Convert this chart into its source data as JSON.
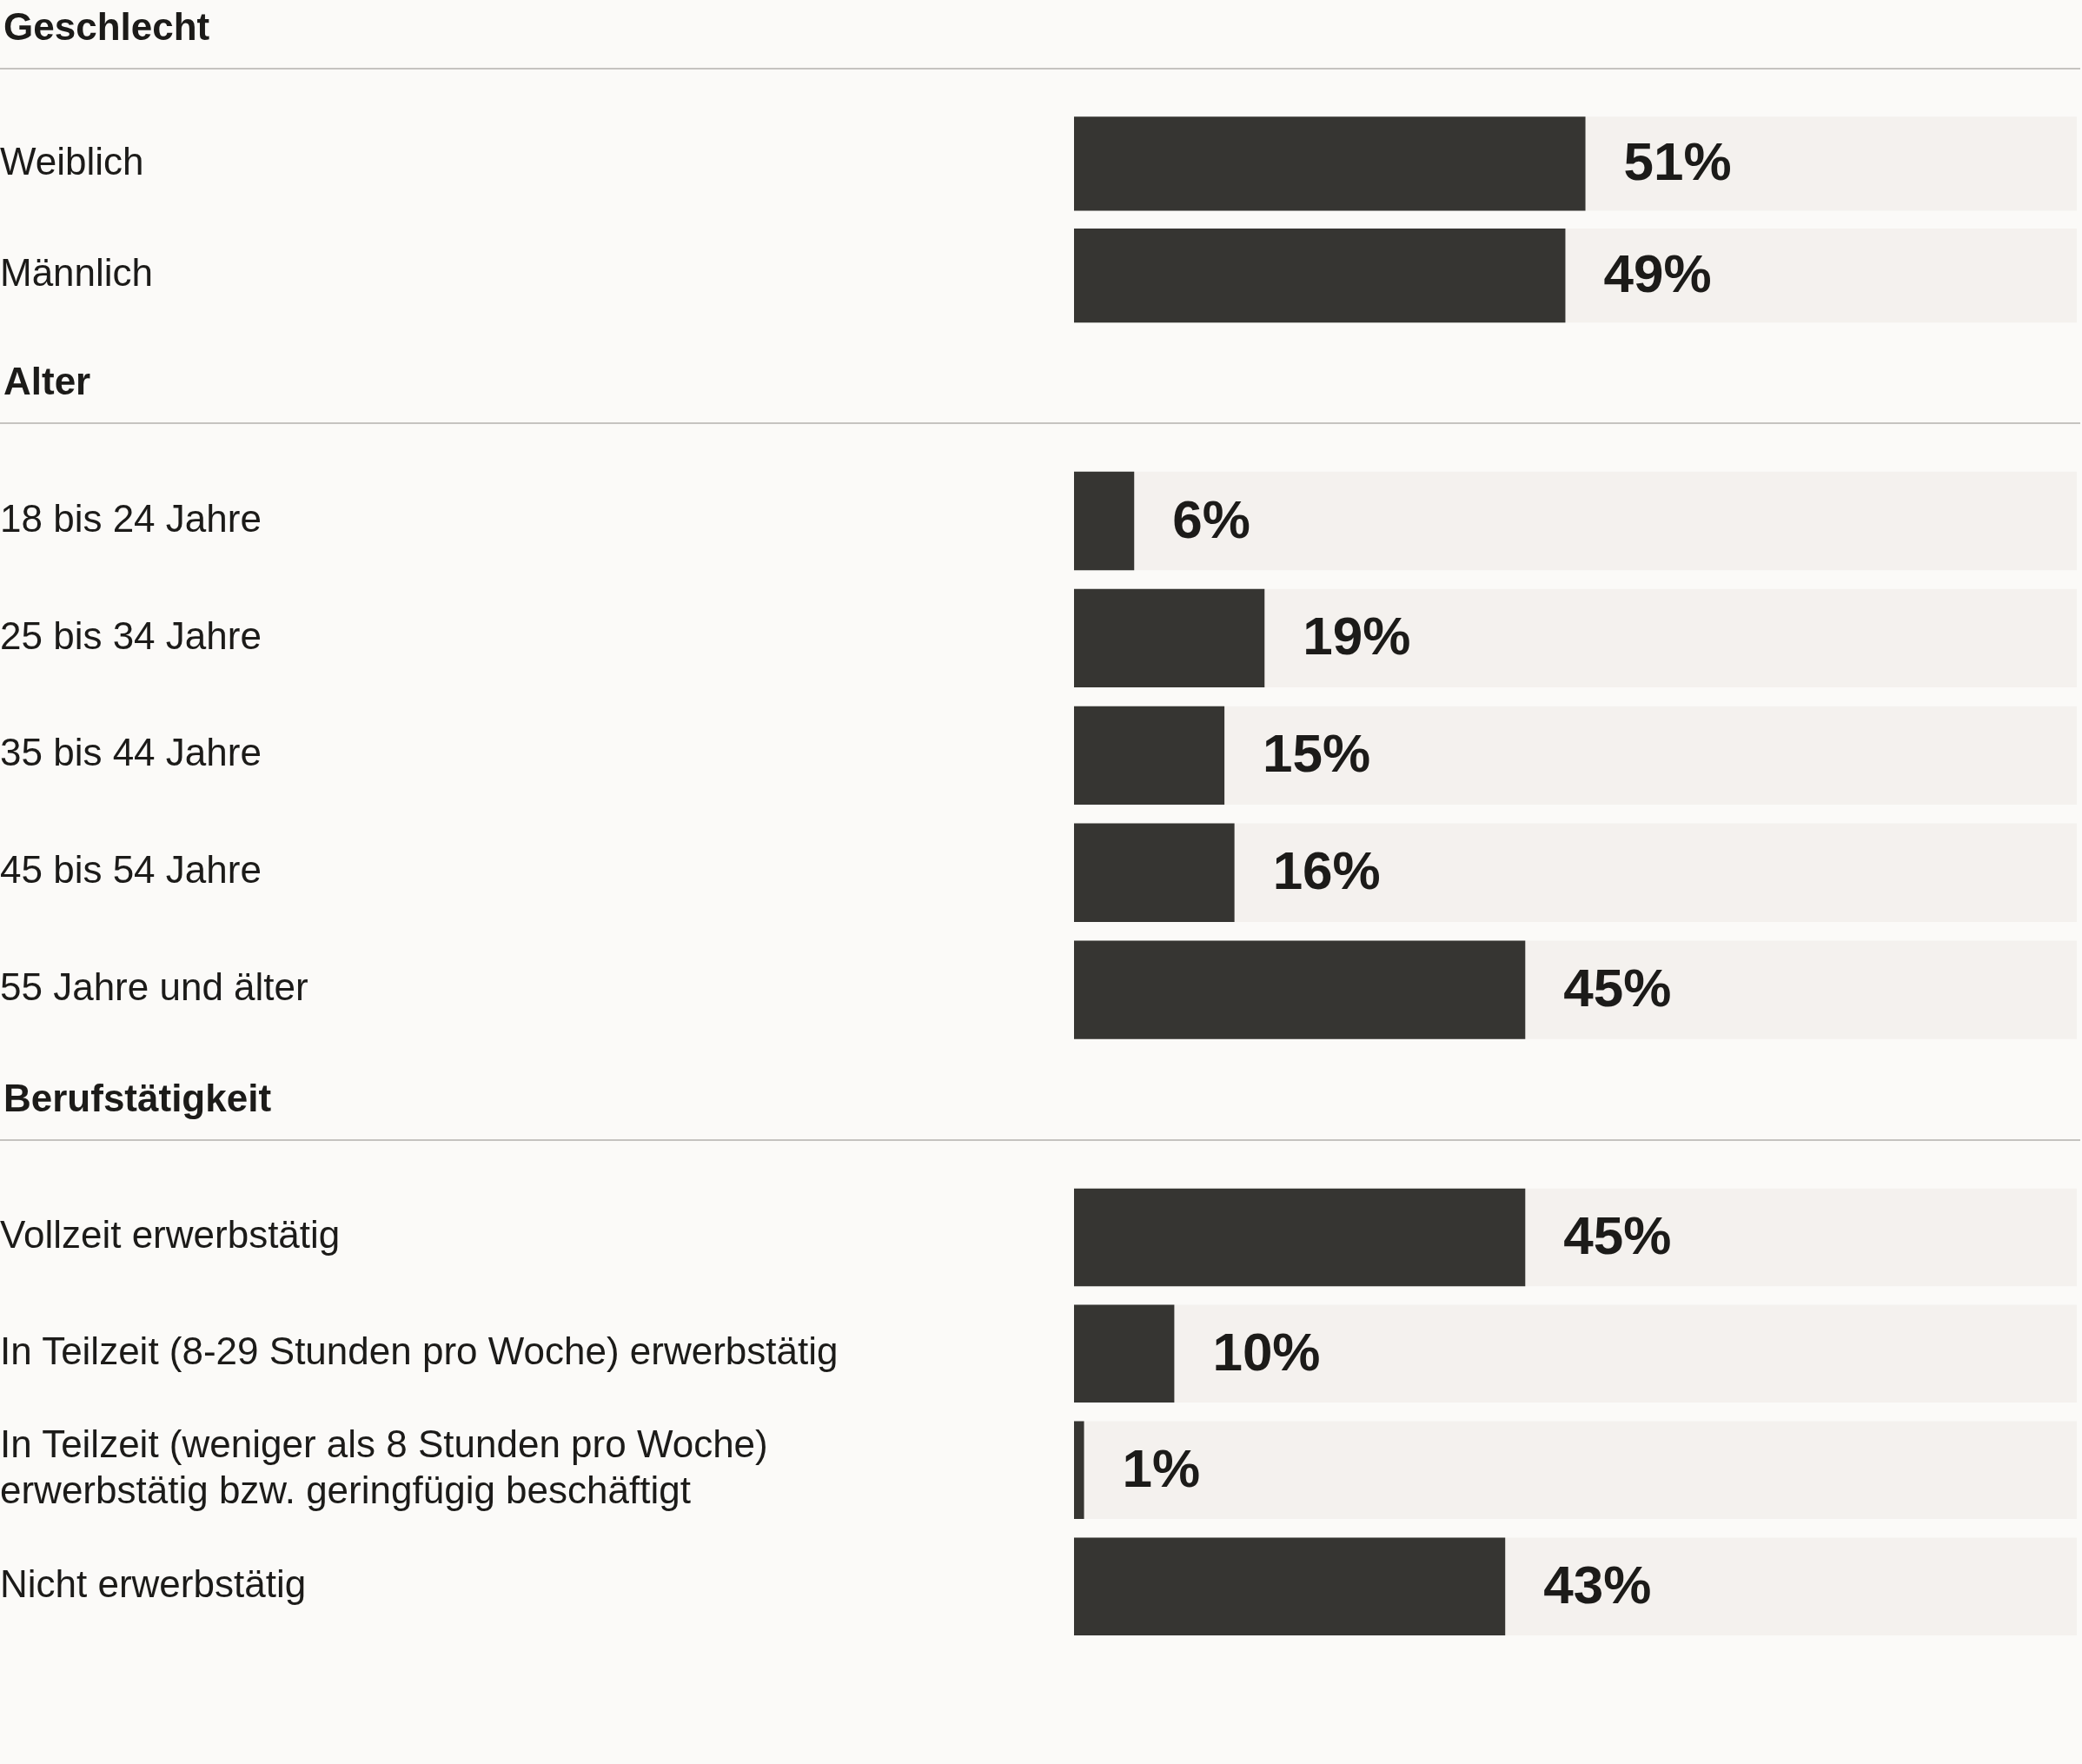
{
  "chart_data": [
    {
      "type": "bar",
      "orientation": "horizontal",
      "title": "Geschlecht",
      "categories": [
        "Weiblich",
        "Männlich"
      ],
      "values": [
        51,
        49
      ],
      "value_labels": [
        "51%",
        "49%"
      ],
      "color": "#363532",
      "xlim": [
        0,
        100
      ],
      "tick_labels": "y",
      "bands": [
        {
          "axis": "x",
          "from": 0,
          "to": 100,
          "color": "#f4f1ee"
        }
      ]
    },
    {
      "type": "bar",
      "orientation": "horizontal",
      "title": "Alter",
      "categories": [
        "18 bis 24 Jahre",
        "25 bis 34 Jahre",
        "35 bis 44 Jahre",
        "45 bis 54 Jahre",
        "55 Jahre und älter"
      ],
      "values": [
        6,
        19,
        15,
        16,
        45
      ],
      "value_labels": [
        "6%",
        "19%",
        "15%",
        "16%",
        "45%"
      ],
      "color": "#363532",
      "xlim": [
        0,
        100
      ],
      "tick_labels": "y",
      "bands": [
        {
          "axis": "x",
          "from": 0,
          "to": 100,
          "color": "#f4f1ee"
        }
      ]
    },
    {
      "type": "bar",
      "orientation": "horizontal",
      "title": "Berufstätigkeit",
      "categories": [
        "Vollzeit erwerbstätig",
        "In Teilzeit (8-29 Stunden pro Woche) erwerbstätig",
        "In Teilzeit (weniger als 8 Stunden pro Woche) erwerbstätig bzw. geringfügig beschäftigt",
        "Nicht erwerbstätig"
      ],
      "values": [
        45,
        10,
        1,
        43
      ],
      "value_labels": [
        "45%",
        "10%",
        "1%",
        "43%"
      ],
      "color": "#363532",
      "xlim": [
        0,
        100
      ],
      "tick_labels": "y",
      "bands": [
        {
          "axis": "x",
          "from": 0,
          "to": 100,
          "color": "#f4f1ee"
        }
      ]
    }
  ]
}
